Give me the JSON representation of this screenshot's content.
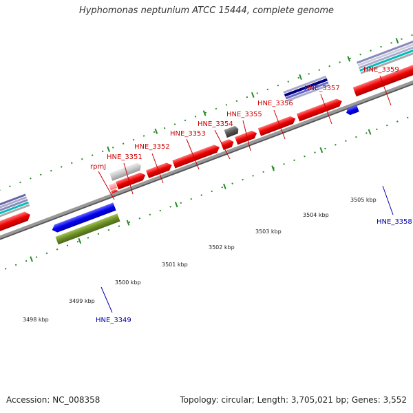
{
  "title": "Hyphomonas neptunium ATCC 15444, complete genome",
  "accession": "Accession: NC_008358",
  "topology": "Topology: circular; Length: 3,705,021 bp; Genes: 3,552",
  "scale_labels": [
    "3498 kbp",
    "3499 kbp",
    "3500 kbp",
    "3501 kbp",
    "3502 kbp",
    "3503 kbp",
    "3504 kbp",
    "3505 kbp"
  ],
  "gene_labels": {
    "top": [
      "rpmJ",
      "HNE_3351",
      "HNE_3352",
      "HNE_3353",
      "HNE_3354",
      "HNE_3355",
      "HNE_3356",
      "HNE_3357",
      "HNE_3359"
    ],
    "bottom": [
      "HNE_3349",
      "HNE_3358"
    ]
  },
  "colors": {
    "forward_gene": "#ff0000",
    "reverse_gene": "#0000ee",
    "label_forward": "#cc0000",
    "label_reverse": "#0000aa",
    "backbone": "#888888",
    "tick": "#228b22",
    "cog_green": "#6b8e23",
    "pseudo_gray": "#c8c8c8",
    "dark_gray": "#555555"
  }
}
